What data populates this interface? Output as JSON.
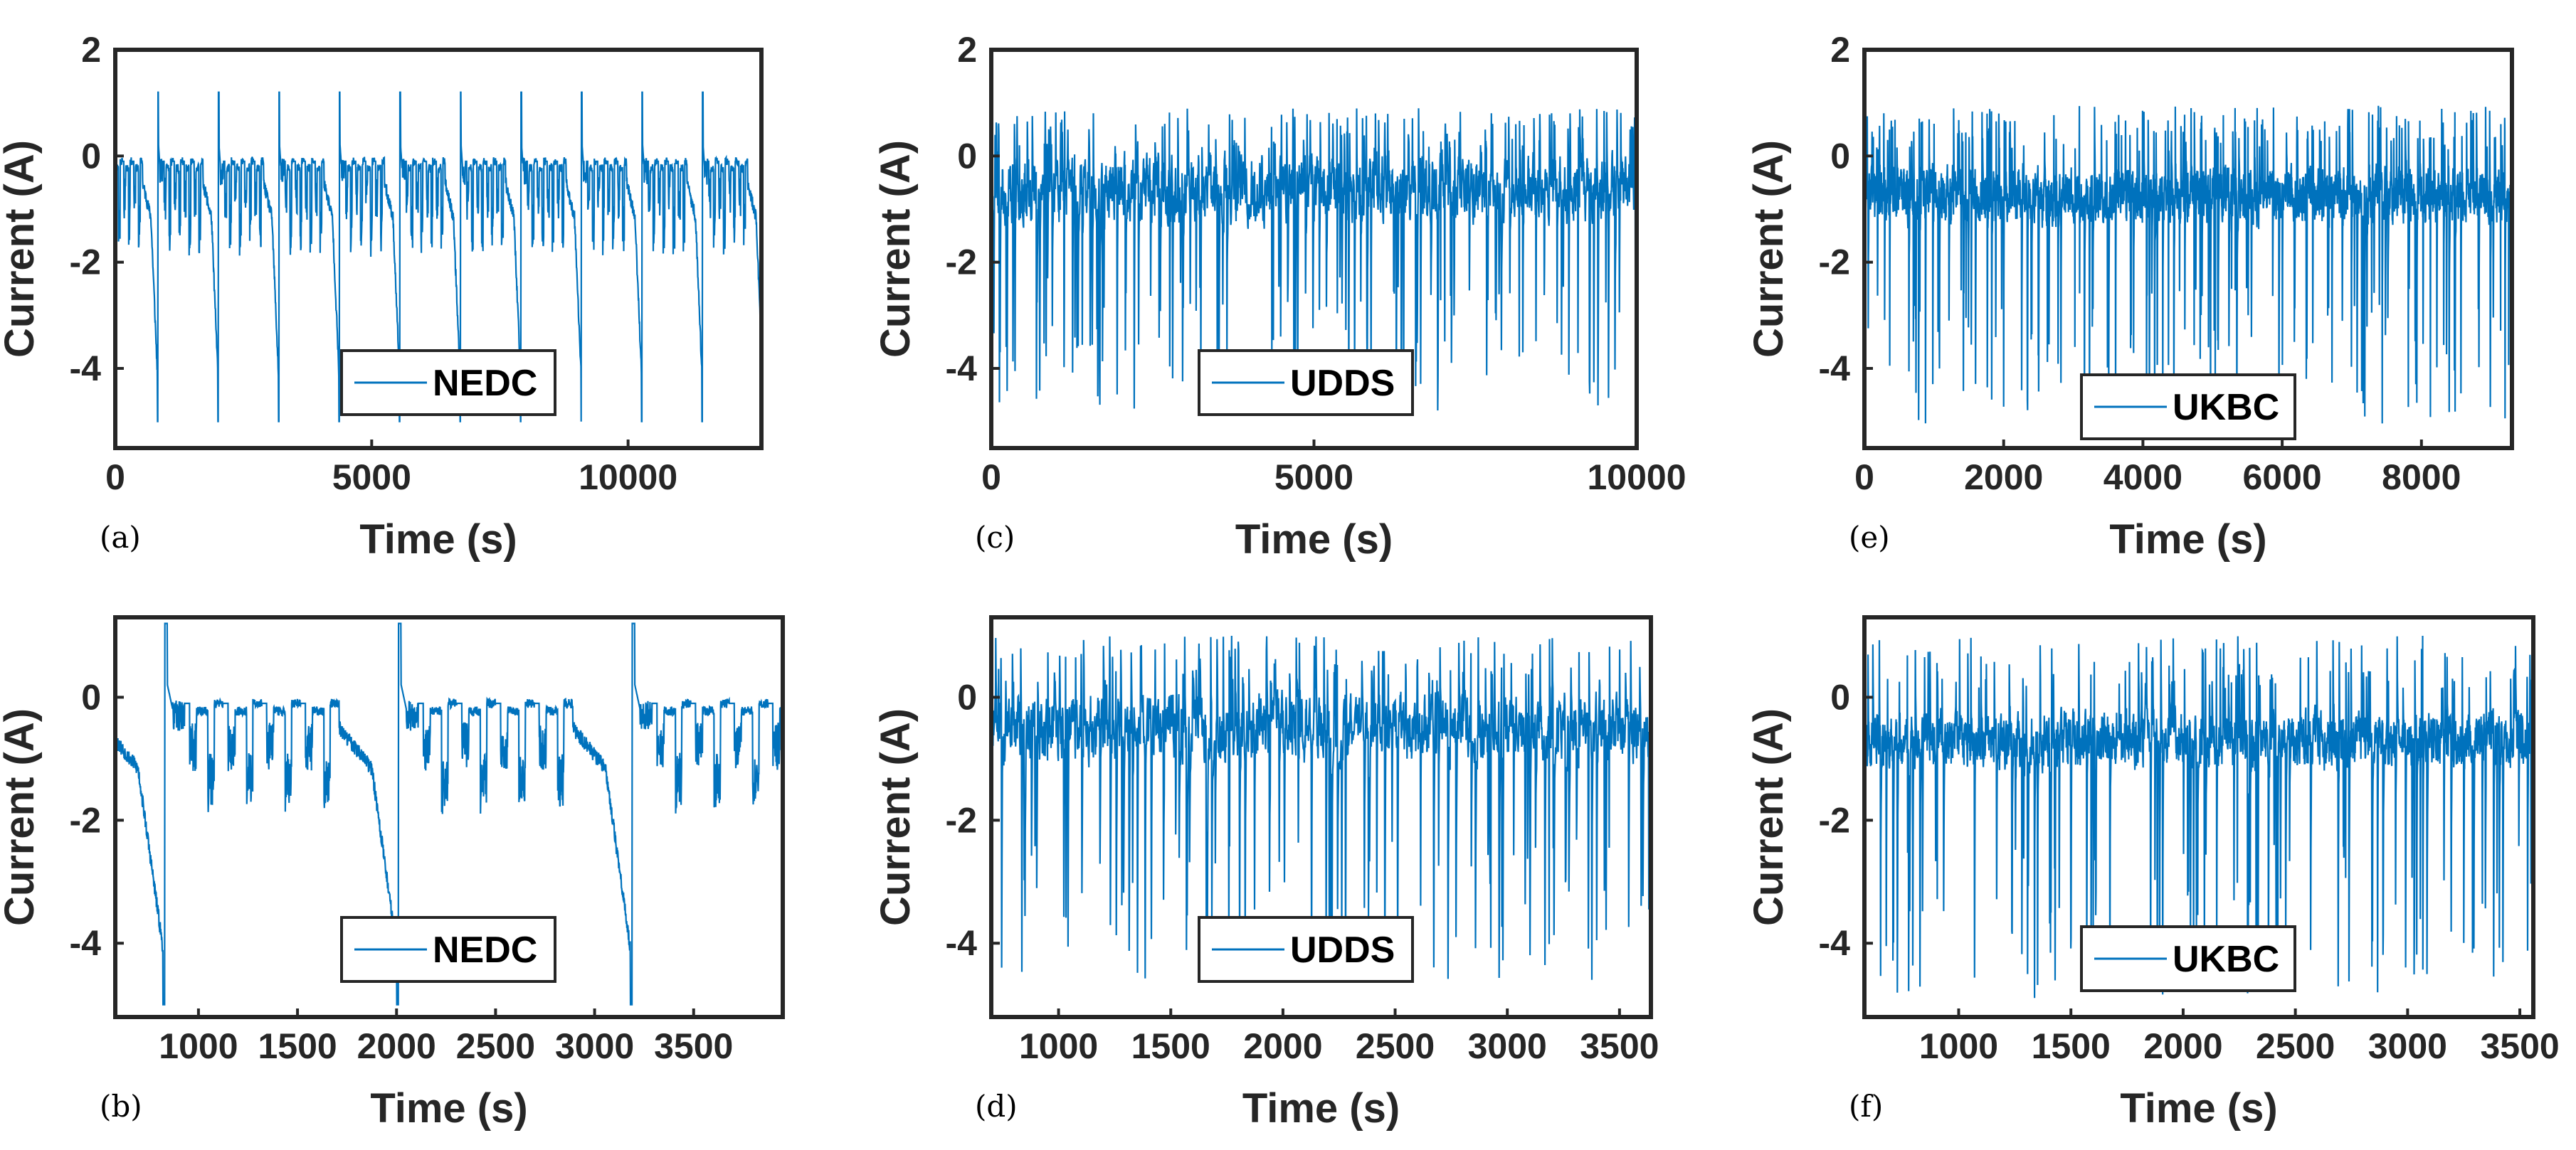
{
  "chart_data": [
    {
      "id": "a",
      "panel_label": "(a)",
      "type": "line",
      "cycle": "NEDC",
      "xlabel": "Time (s)",
      "ylabel": "Current (A)",
      "xlim": [
        0,
        12600
      ],
      "ylim": [
        -5.5,
        2
      ],
      "xticks": [
        0,
        5000,
        10000
      ],
      "xtick_labels": [
        "0",
        "5000",
        "10000"
      ],
      "yticks": [
        2,
        0,
        -2,
        -4
      ],
      "ytick_labels": [
        "2",
        "0",
        "-2",
        "-4"
      ],
      "series": [
        {
          "name": "NEDC",
          "color": "#0072BD"
        }
      ],
      "legend": {
        "label": "NEDC",
        "loc": "bottom-center"
      }
    },
    {
      "id": "c",
      "panel_label": "(c)",
      "type": "line",
      "cycle": "UDDS",
      "xlabel": "Time (s)",
      "ylabel": "Current (A)",
      "xlim": [
        0,
        10000
      ],
      "ylim": [
        -5.5,
        2
      ],
      "xticks": [
        0,
        5000,
        10000
      ],
      "xtick_labels": [
        "0",
        "5000",
        "10000"
      ],
      "yticks": [
        2,
        0,
        -2,
        -4
      ],
      "ytick_labels": [
        "2",
        "0",
        "-2",
        "-4"
      ],
      "series": [
        {
          "name": "UDDS",
          "color": "#0072BD"
        }
      ],
      "legend": {
        "label": "UDDS",
        "loc": "bottom-center"
      }
    },
    {
      "id": "e",
      "panel_label": "(e)",
      "type": "line",
      "cycle": "UKBC",
      "xlabel": "Time (s)",
      "ylabel": "Current (A)",
      "xlim": [
        0,
        9300
      ],
      "ylim": [
        -5.5,
        2
      ],
      "xticks": [
        0,
        2000,
        4000,
        6000,
        8000
      ],
      "xtick_labels": [
        "0",
        "2000",
        "4000",
        "6000",
        "8000"
      ],
      "yticks": [
        2,
        0,
        -2,
        -4
      ],
      "ytick_labels": [
        "2",
        "0",
        "-2",
        "-4"
      ],
      "series": [
        {
          "name": "UKBC",
          "color": "#0072BD"
        }
      ],
      "legend": {
        "label": "UKBC",
        "loc": "bottom-center"
      }
    },
    {
      "id": "b",
      "panel_label": "(b)",
      "type": "line",
      "cycle": "NEDC",
      "xlabel": "Time (s)",
      "ylabel": "Current (A)",
      "xlim": [
        580,
        3950
      ],
      "ylim": [
        -5.2,
        1.3
      ],
      "xticks": [
        1000,
        1500,
        2000,
        2500,
        3000,
        3500
      ],
      "xtick_labels": [
        "1000",
        "1500",
        "2000",
        "2500",
        "3000",
        "3500"
      ],
      "yticks": [
        0,
        -2,
        -4
      ],
      "ytick_labels": [
        "0",
        "-2",
        "-4"
      ],
      "series": [
        {
          "name": "NEDC",
          "color": "#0072BD"
        }
      ],
      "legend": {
        "label": "NEDC",
        "loc": "bottom-center"
      }
    },
    {
      "id": "d",
      "panel_label": "(d)",
      "type": "line",
      "cycle": "UDDS",
      "xlabel": "Time (s)",
      "ylabel": "Current (A)",
      "xlim": [
        700,
        3640
      ],
      "ylim": [
        -5.2,
        1.3
      ],
      "xticks": [
        1000,
        1500,
        2000,
        2500,
        3000,
        3500
      ],
      "xtick_labels": [
        "1000",
        "1500",
        "2000",
        "2500",
        "3000",
        "3500"
      ],
      "yticks": [
        0,
        -2,
        -4
      ],
      "ytick_labels": [
        "0",
        "-2",
        "-4"
      ],
      "series": [
        {
          "name": "UDDS",
          "color": "#0072BD"
        }
      ],
      "legend": {
        "label": "UDDS",
        "loc": "bottom-center"
      }
    },
    {
      "id": "f",
      "panel_label": "(f)",
      "type": "line",
      "cycle": "UKBC",
      "xlabel": "Time (s)",
      "ylabel": "Current (A)",
      "xlim": [
        580,
        3560
      ],
      "ylim": [
        -5.2,
        1.3
      ],
      "xticks": [
        1000,
        1500,
        2000,
        2500,
        3000,
        3500
      ],
      "xtick_labels": [
        "1000",
        "1500",
        "2000",
        "2500",
        "3000",
        "3500"
      ],
      "yticks": [
        0,
        -2,
        -4
      ],
      "ytick_labels": [
        "0",
        "-2",
        "-4"
      ],
      "series": [
        {
          "name": "UKBC",
          "color": "#0072BD"
        }
      ],
      "legend": {
        "label": "UKBC",
        "loc": "bottom-center"
      }
    }
  ]
}
